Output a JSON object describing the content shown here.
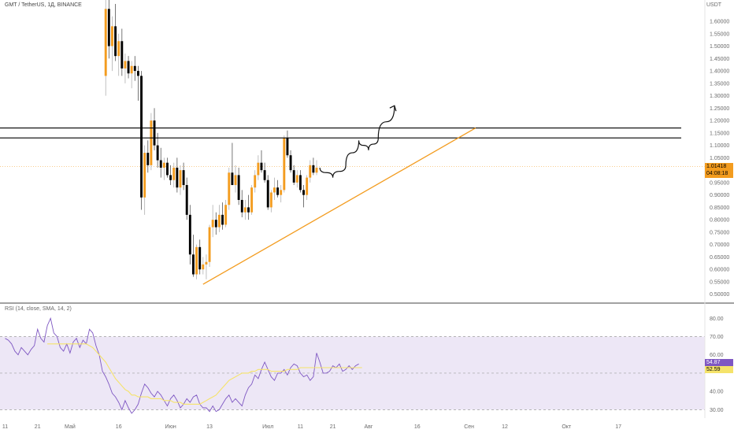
{
  "header": {
    "symbol": "GMT / TetherUS, 1Д, BINANCE",
    "currency": "USDT"
  },
  "price_badge": {
    "price": "1.01418",
    "countdown": "04:08:18"
  },
  "rsi_header": "RSI (14, close, SMA, 14, 2)",
  "rsi_badges": {
    "rsi": "54.87",
    "ma": "52.59"
  },
  "colors": {
    "up": "#f39c1f",
    "down": "#000000",
    "trend_line": "#f39c1f",
    "resistance": "#000000",
    "rsi_line": "#7e57c2",
    "rsi_ma": "#f5e36a",
    "rsi_band": "#ede7f6",
    "price_badge": "#f39c1f",
    "rsi_badge": "#7e57c2",
    "ma_badge": "#f5e36a"
  },
  "chart_data": [
    {
      "type": "candlestick",
      "ylim": [
        0.48,
        1.67
      ],
      "yticks": [
        0.5,
        0.55,
        0.6,
        0.65,
        0.7,
        0.75,
        0.8,
        0.85,
        0.9,
        0.95,
        1.0,
        1.05,
        1.1,
        1.15,
        1.2,
        1.25,
        1.3,
        1.35,
        1.4,
        1.45,
        1.5,
        1.55,
        1.6
      ],
      "ytick_labels": [
        "0.50000",
        "0.55000",
        "0.60000",
        "0.65000",
        "0.70000",
        "0.75000",
        "0.80000",
        "0.85000",
        "0.90000",
        "0.95000",
        "1.00000",
        "1.05000",
        "1.10000",
        "1.15000",
        "1.20000",
        "1.25000",
        "1.30000",
        "1.35000",
        "1.40000",
        "1.45000",
        "1.50000",
        "1.55000",
        "1.60000"
      ],
      "x_labels": [
        {
          "label": "11",
          "day": 0
        },
        {
          "label": "21",
          "day": 10
        },
        {
          "label": "Май",
          "day": 20
        },
        {
          "label": "16",
          "day": 35
        },
        {
          "label": "Июн",
          "day": 51
        },
        {
          "label": "13",
          "day": 63
        },
        {
          "label": "Июл",
          "day": 81
        },
        {
          "label": "11",
          "day": 91
        },
        {
          "label": "21",
          "day": 101
        },
        {
          "label": "Авг",
          "day": 112
        },
        {
          "label": "16",
          "day": 127
        },
        {
          "label": "Сен",
          "day": 143
        },
        {
          "label": "12",
          "day": 154
        },
        {
          "label": "Окт",
          "day": 173
        },
        {
          "label": "17",
          "day": 189
        }
      ],
      "candles_start_day": 31,
      "candles": [
        {
          "o": 1.38,
          "h": 1.7,
          "l": 1.3,
          "c": 1.65
        },
        {
          "o": 1.65,
          "h": 1.72,
          "l": 1.45,
          "c": 1.5
        },
        {
          "o": 1.5,
          "h": 1.62,
          "l": 1.4,
          "c": 1.58
        },
        {
          "o": 1.58,
          "h": 1.67,
          "l": 1.44,
          "c": 1.46
        },
        {
          "o": 1.46,
          "h": 1.55,
          "l": 1.38,
          "c": 1.52
        },
        {
          "o": 1.52,
          "h": 1.57,
          "l": 1.38,
          "c": 1.41
        },
        {
          "o": 1.41,
          "h": 1.47,
          "l": 1.35,
          "c": 1.44
        },
        {
          "o": 1.44,
          "h": 1.46,
          "l": 1.37,
          "c": 1.39
        },
        {
          "o": 1.39,
          "h": 1.44,
          "l": 1.33,
          "c": 1.42
        },
        {
          "o": 1.42,
          "h": 1.46,
          "l": 1.36,
          "c": 1.4
        },
        {
          "o": 1.4,
          "h": 1.42,
          "l": 1.28,
          "c": 1.38
        },
        {
          "o": 1.38,
          "h": 1.4,
          "l": 0.84,
          "c": 0.89
        },
        {
          "o": 0.89,
          "h": 1.1,
          "l": 0.82,
          "c": 1.07
        },
        {
          "o": 1.07,
          "h": 1.12,
          "l": 0.99,
          "c": 1.02
        },
        {
          "o": 1.02,
          "h": 1.23,
          "l": 1.0,
          "c": 1.2
        },
        {
          "o": 1.2,
          "h": 1.25,
          "l": 1.08,
          "c": 1.1
        },
        {
          "o": 1.1,
          "h": 1.15,
          "l": 1.01,
          "c": 1.04
        },
        {
          "o": 1.04,
          "h": 1.09,
          "l": 0.97,
          "c": 1.01
        },
        {
          "o": 1.01,
          "h": 1.05,
          "l": 0.96,
          "c": 1.03
        },
        {
          "o": 1.03,
          "h": 1.05,
          "l": 0.97,
          "c": 0.98
        },
        {
          "o": 0.98,
          "h": 1.02,
          "l": 0.94,
          "c": 0.96
        },
        {
          "o": 0.96,
          "h": 1.03,
          "l": 0.93,
          "c": 1.01
        },
        {
          "o": 1.01,
          "h": 1.05,
          "l": 0.91,
          "c": 0.93
        },
        {
          "o": 0.93,
          "h": 1.02,
          "l": 0.9,
          "c": 1.0
        },
        {
          "o": 1.0,
          "h": 1.03,
          "l": 0.92,
          "c": 0.94
        },
        {
          "o": 0.94,
          "h": 0.97,
          "l": 0.8,
          "c": 0.82
        },
        {
          "o": 0.82,
          "h": 0.86,
          "l": 0.62,
          "c": 0.66
        },
        {
          "o": 0.66,
          "h": 0.74,
          "l": 0.57,
          "c": 0.58
        },
        {
          "o": 0.58,
          "h": 0.7,
          "l": 0.56,
          "c": 0.69
        },
        {
          "o": 0.69,
          "h": 0.72,
          "l": 0.58,
          "c": 0.6
        },
        {
          "o": 0.6,
          "h": 0.65,
          "l": 0.58,
          "c": 0.62
        },
        {
          "o": 0.62,
          "h": 0.66,
          "l": 0.56,
          "c": 0.63
        },
        {
          "o": 0.63,
          "h": 0.78,
          "l": 0.61,
          "c": 0.77
        },
        {
          "o": 0.77,
          "h": 0.86,
          "l": 0.73,
          "c": 0.8
        },
        {
          "o": 0.8,
          "h": 0.83,
          "l": 0.74,
          "c": 0.77
        },
        {
          "o": 0.77,
          "h": 0.86,
          "l": 0.75,
          "c": 0.82
        },
        {
          "o": 0.82,
          "h": 0.87,
          "l": 0.76,
          "c": 0.78
        },
        {
          "o": 0.78,
          "h": 0.88,
          "l": 0.77,
          "c": 0.86
        },
        {
          "o": 0.86,
          "h": 1.01,
          "l": 0.84,
          "c": 0.99
        },
        {
          "o": 0.99,
          "h": 1.11,
          "l": 0.94,
          "c": 0.94
        },
        {
          "o": 0.94,
          "h": 1.02,
          "l": 0.91,
          "c": 0.98
        },
        {
          "o": 0.98,
          "h": 1.01,
          "l": 0.86,
          "c": 0.88
        },
        {
          "o": 0.88,
          "h": 0.92,
          "l": 0.81,
          "c": 0.83
        },
        {
          "o": 0.83,
          "h": 0.88,
          "l": 0.8,
          "c": 0.85
        },
        {
          "o": 0.85,
          "h": 0.9,
          "l": 0.8,
          "c": 0.83
        },
        {
          "o": 0.83,
          "h": 0.94,
          "l": 0.82,
          "c": 0.93
        },
        {
          "o": 0.93,
          "h": 1.0,
          "l": 0.91,
          "c": 0.98
        },
        {
          "o": 0.98,
          "h": 1.06,
          "l": 0.96,
          "c": 1.03
        },
        {
          "o": 1.03,
          "h": 1.08,
          "l": 0.99,
          "c": 1.0
        },
        {
          "o": 1.0,
          "h": 1.03,
          "l": 0.95,
          "c": 0.96
        },
        {
          "o": 0.96,
          "h": 0.98,
          "l": 0.84,
          "c": 0.85
        },
        {
          "o": 0.85,
          "h": 0.92,
          "l": 0.83,
          "c": 0.91
        },
        {
          "o": 0.91,
          "h": 0.97,
          "l": 0.88,
          "c": 0.93
        },
        {
          "o": 0.93,
          "h": 0.96,
          "l": 0.89,
          "c": 0.9
        },
        {
          "o": 0.9,
          "h": 0.94,
          "l": 0.87,
          "c": 0.92
        },
        {
          "o": 0.92,
          "h": 1.14,
          "l": 0.91,
          "c": 1.13
        },
        {
          "o": 1.13,
          "h": 1.16,
          "l": 1.05,
          "c": 1.06
        },
        {
          "o": 1.06,
          "h": 1.08,
          "l": 0.99,
          "c": 1.0
        },
        {
          "o": 1.0,
          "h": 1.02,
          "l": 0.94,
          "c": 0.95
        },
        {
          "o": 0.95,
          "h": 1.0,
          "l": 0.93,
          "c": 0.98
        },
        {
          "o": 0.98,
          "h": 1.0,
          "l": 0.91,
          "c": 0.92
        },
        {
          "o": 0.92,
          "h": 0.94,
          "l": 0.85,
          "c": 0.9
        },
        {
          "o": 0.9,
          "h": 0.98,
          "l": 0.88,
          "c": 0.97
        },
        {
          "o": 0.97,
          "h": 1.04,
          "l": 0.95,
          "c": 1.02
        },
        {
          "o": 1.02,
          "h": 1.05,
          "l": 0.98,
          "c": 0.99
        },
        {
          "o": 0.99,
          "h": 1.04,
          "l": 0.98,
          "c": 1.01
        }
      ],
      "resistance_levels": [
        1.13,
        1.17
      ],
      "trend_line": {
        "from": {
          "day": 61,
          "price": 0.54
        },
        "to": {
          "day": 145,
          "price": 1.17
        }
      },
      "projection_arrow": [
        {
          "day": 97,
          "price": 1.01
        },
        {
          "day": 101,
          "price": 0.97
        },
        {
          "day": 105,
          "price": 1.02
        },
        {
          "day": 109,
          "price": 1.12
        },
        {
          "day": 112,
          "price": 1.08
        },
        {
          "day": 115,
          "price": 1.13
        },
        {
          "day": 120,
          "price": 1.26
        }
      ],
      "current_price": 1.01418
    },
    {
      "type": "line",
      "title": "RSI (14, close, SMA, 14, 2)",
      "ylim": [
        28,
        84
      ],
      "yticks": [
        30,
        40,
        50,
        60,
        70,
        80
      ],
      "ytick_labels": [
        "30.00",
        "40.00",
        "50.00",
        "60.00",
        "70.00",
        "80.00"
      ],
      "bands": [
        30,
        50,
        70
      ],
      "series": [
        {
          "name": "RSI",
          "start_day": 0,
          "values": [
            69,
            68,
            66,
            62,
            60,
            64,
            62,
            60,
            63,
            65,
            74,
            69,
            67,
            76,
            80,
            72,
            70,
            64,
            62,
            66,
            61,
            67,
            69,
            64,
            68,
            66,
            74,
            72,
            65,
            60,
            51,
            48,
            44,
            39,
            37,
            34,
            30,
            35,
            31,
            28,
            30,
            33,
            39,
            44,
            42,
            39,
            37,
            40,
            38,
            35,
            32,
            36,
            38,
            35,
            31,
            33,
            36,
            34,
            37,
            38,
            33,
            31,
            31,
            29,
            32,
            29,
            30,
            33,
            36,
            38,
            34,
            36,
            34,
            32,
            38,
            42,
            44,
            49,
            47,
            52,
            56,
            52,
            48,
            46,
            50,
            50,
            52,
            49,
            53,
            55,
            54,
            50,
            48,
            49,
            46,
            48,
            61,
            56,
            50,
            50,
            51,
            54,
            53,
            55,
            51,
            52,
            54,
            52,
            54,
            55
          ]
        },
        {
          "name": "SMA",
          "start_day": 13,
          "values": [
            66,
            66,
            66,
            66,
            66,
            66,
            66,
            66,
            66,
            66,
            66,
            66,
            66,
            65,
            64,
            62,
            60,
            58,
            56,
            53,
            50,
            47,
            45,
            43,
            41,
            40,
            38,
            38,
            37,
            37,
            37,
            37,
            36,
            36,
            36,
            36,
            35,
            35,
            35,
            34,
            34,
            34,
            33,
            33,
            33,
            33,
            33,
            33,
            34,
            35,
            36,
            37,
            38,
            40,
            42,
            44,
            46,
            47,
            48,
            49,
            50,
            50,
            50,
            51,
            51,
            52,
            52,
            52,
            52,
            51,
            51,
            51,
            51,
            51,
            52,
            52,
            52,
            52,
            53,
            53,
            53,
            53,
            53,
            53,
            53,
            53,
            53,
            53,
            53,
            53,
            53,
            53,
            53,
            53,
            53,
            53,
            53,
            53
          ]
        }
      ],
      "current_values": {
        "rsi": 54.87,
        "ma": 52.59
      }
    }
  ]
}
